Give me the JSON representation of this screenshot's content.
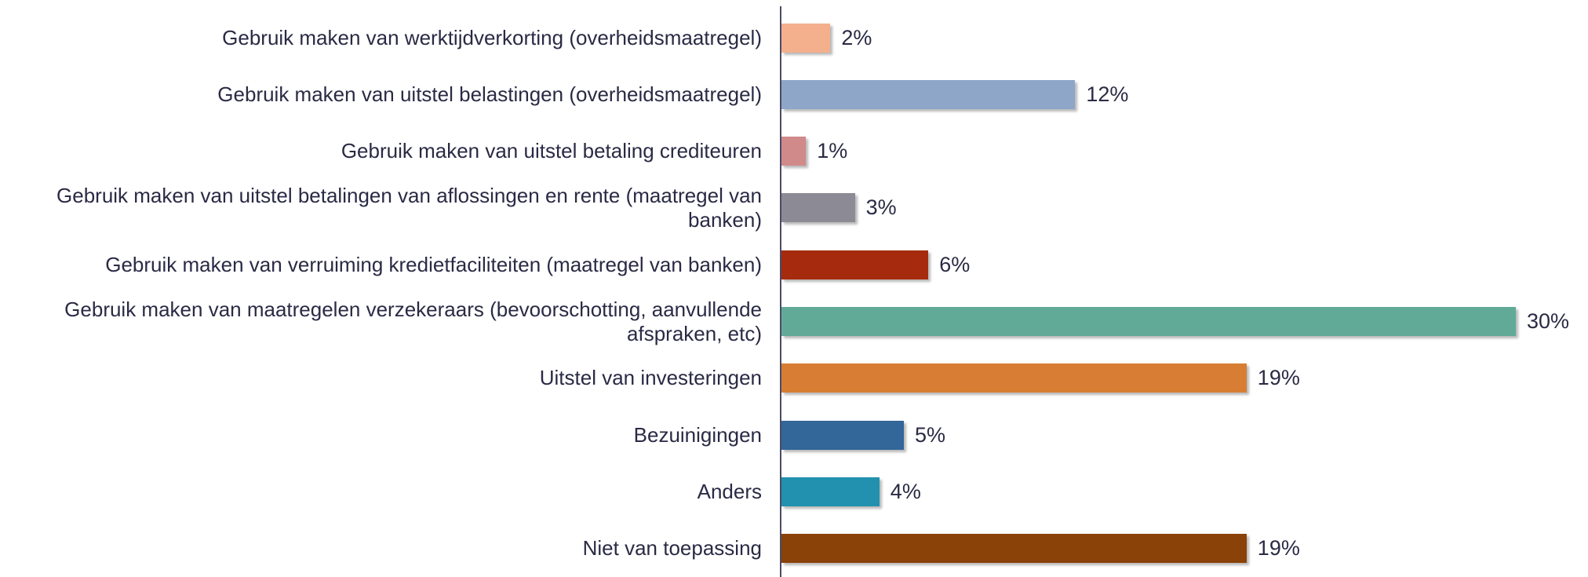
{
  "chart_data": {
    "type": "bar",
    "orientation": "horizontal",
    "categories": [
      "Gebruik maken van werktijdverkorting (overheidsmaatregel)",
      "Gebruik maken van uitstel belastingen (overheidsmaatregel)",
      "Gebruik maken van uitstel betaling crediteuren",
      "Gebruik maken van uitstel betalingen van aflossingen en rente (maatregel van banken)",
      "Gebruik maken van verruiming kredietfaciliteiten (maatregel van banken)",
      "Gebruik maken van maatregelen verzekeraars (bevoorschotting, aanvullende afspraken, etc)",
      "Uitstel van investeringen",
      "Bezuinigingen",
      "Anders",
      "Niet van toepassing"
    ],
    "values": [
      2,
      12,
      1,
      3,
      6,
      30,
      19,
      5,
      4,
      19
    ],
    "value_labels": [
      "2%",
      "12%",
      "1%",
      "3%",
      "6%",
      "30%",
      "19%",
      "5%",
      "4%",
      "19%"
    ],
    "colors": [
      "#f4b08c",
      "#8ea6c8",
      "#d08a8a",
      "#8c8a94",
      "#a62a0e",
      "#62aa98",
      "#d77e34",
      "#336699",
      "#2191af",
      "#8a4208"
    ]
  }
}
